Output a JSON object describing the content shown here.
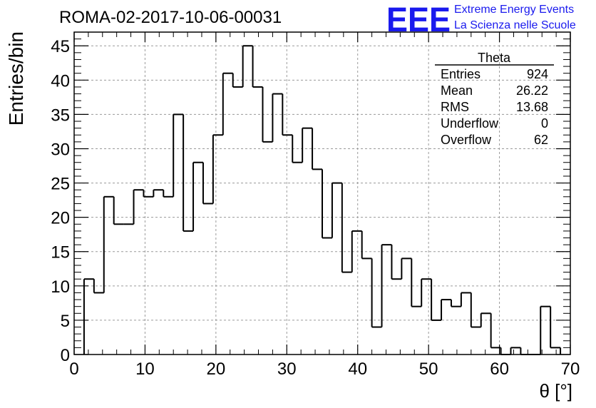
{
  "title": "ROMA-02-2017-10-06-00031",
  "logo": {
    "mark": "EEE",
    "line1": "Extreme Energy Events",
    "line2": "La Scienza nelle Scuole",
    "color": "#1a1aee"
  },
  "stats": {
    "title": "Theta",
    "rows": [
      {
        "label": "Entries",
        "value": "924"
      },
      {
        "label": "Mean",
        "value": "26.22"
      },
      {
        "label": "RMS",
        "value": "13.68"
      },
      {
        "label": "Underflow",
        "value": "0"
      },
      {
        "label": "Overflow",
        "value": "62"
      }
    ]
  },
  "chart_data": {
    "type": "histogram",
    "xlabel": "θ [°]",
    "ylabel": "Entries/bin",
    "xlim": [
      0,
      70
    ],
    "ylim": [
      0,
      47
    ],
    "grid": true,
    "bin_width": 1.4,
    "x_start": 1.4,
    "values": [
      11,
      9,
      23,
      19,
      19,
      24,
      23,
      24,
      23,
      35,
      18,
      28,
      22,
      32,
      41,
      39,
      45,
      39,
      31,
      38,
      32,
      28,
      33,
      27,
      17,
      25,
      12,
      18,
      14,
      4,
      16,
      11,
      14,
      7,
      11,
      5,
      8,
      7,
      9,
      4,
      6,
      1,
      0,
      1,
      0,
      0,
      7,
      1
    ],
    "x_ticks": [
      "0",
      "10",
      "20",
      "30",
      "40",
      "50",
      "60",
      "70"
    ],
    "y_ticks": [
      "0",
      "5",
      "10",
      "15",
      "20",
      "25",
      "30",
      "35",
      "40",
      "45"
    ]
  }
}
